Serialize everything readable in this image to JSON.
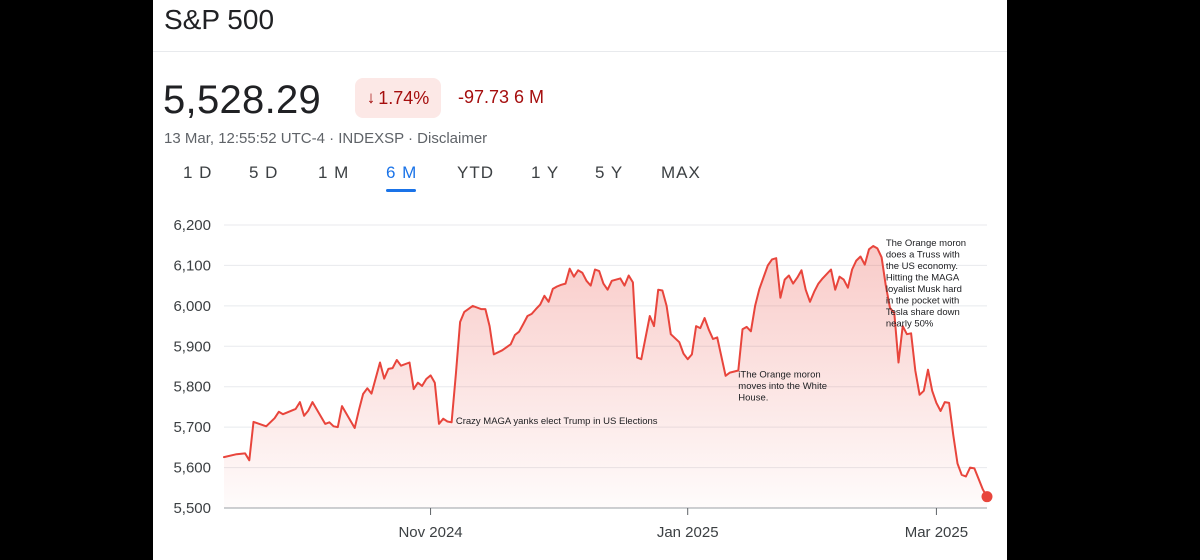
{
  "colors": {
    "line": "#e8453c",
    "negative_text": "#a50e0e",
    "negative_chip_bg": "#fce8e6",
    "active_tab": "#1a73e8",
    "grid": "#e8eaed"
  },
  "header": {
    "title": "S&P 500",
    "price": "5,528.29",
    "change_pct": "1.74%",
    "change_icon": "arrow-down-icon",
    "change_abs": "-97.73 6 M",
    "meta": "13 Mar, 12:55:52 UTC-4 · INDEXSP · Disclaimer"
  },
  "tabs": [
    {
      "label": "1 D",
      "active": false
    },
    {
      "label": "5 D",
      "active": false
    },
    {
      "label": "1 M",
      "active": false
    },
    {
      "label": "6 M",
      "active": true
    },
    {
      "label": "YTD",
      "active": false
    },
    {
      "label": "1 Y",
      "active": false
    },
    {
      "label": "5 Y",
      "active": false
    },
    {
      "label": "MAX",
      "active": false
    }
  ],
  "chart_data": {
    "type": "area",
    "grid": "horizontal",
    "ylim": [
      5500,
      6200
    ],
    "yticks": [
      5500,
      5600,
      5700,
      5800,
      5900,
      6000,
      6100,
      6200
    ],
    "ytick_labels": [
      "5,500",
      "5,600",
      "5,700",
      "5,800",
      "5,900",
      "6,000",
      "6,100",
      "6,200"
    ],
    "x_range": [
      "2024-09-13",
      "2025-03-13"
    ],
    "xticks": [
      {
        "date": "2024-11-01",
        "label": "Nov 2024"
      },
      {
        "date": "2025-01-01",
        "label": "Jan 2025"
      },
      {
        "date": "2025-03-01",
        "label": "Mar 2025"
      }
    ],
    "series": [
      {
        "points": [
          [
            "2024-09-13",
            5626
          ],
          [
            "2024-09-16",
            5633
          ],
          [
            "2024-09-18",
            5635
          ],
          [
            "2024-09-19",
            5618
          ],
          [
            "2024-09-20",
            5713
          ],
          [
            "2024-09-23",
            5702
          ],
          [
            "2024-09-25",
            5722
          ],
          [
            "2024-09-26",
            5738
          ],
          [
            "2024-09-27",
            5732
          ],
          [
            "2024-09-30",
            5745
          ],
          [
            "2024-10-01",
            5762
          ],
          [
            "2024-10-02",
            5728
          ],
          [
            "2024-10-03",
            5741
          ],
          [
            "2024-10-04",
            5762
          ],
          [
            "2024-10-07",
            5708
          ],
          [
            "2024-10-08",
            5712
          ],
          [
            "2024-10-09",
            5702
          ],
          [
            "2024-10-10",
            5700
          ],
          [
            "2024-10-11",
            5752
          ],
          [
            "2024-10-14",
            5698
          ],
          [
            "2024-10-15",
            5742
          ],
          [
            "2024-10-16",
            5782
          ],
          [
            "2024-10-17",
            5796
          ],
          [
            "2024-10-18",
            5783
          ],
          [
            "2024-10-20",
            5860
          ],
          [
            "2024-10-21",
            5820
          ],
          [
            "2024-10-22",
            5844
          ],
          [
            "2024-10-23",
            5846
          ],
          [
            "2024-10-24",
            5866
          ],
          [
            "2024-10-25",
            5852
          ],
          [
            "2024-10-27",
            5860
          ],
          [
            "2024-10-28",
            5794
          ],
          [
            "2024-10-29",
            5810
          ],
          [
            "2024-10-30",
            5802
          ],
          [
            "2024-10-31",
            5819
          ],
          [
            "2024-11-01",
            5828
          ],
          [
            "2024-11-02",
            5810
          ],
          [
            "2024-11-03",
            5708
          ],
          [
            "2024-11-04",
            5721
          ],
          [
            "2024-11-05",
            5714
          ],
          [
            "2024-11-06",
            5712
          ],
          [
            "2024-11-07",
            5832
          ],
          [
            "2024-11-08",
            5960
          ],
          [
            "2024-11-09",
            5985
          ],
          [
            "2024-11-11",
            6000
          ],
          [
            "2024-11-12",
            5996
          ],
          [
            "2024-11-13",
            5992
          ],
          [
            "2024-11-14",
            5992
          ],
          [
            "2024-11-15",
            5950
          ],
          [
            "2024-11-16",
            5880
          ],
          [
            "2024-11-18",
            5890
          ],
          [
            "2024-11-20",
            5905
          ],
          [
            "2024-11-21",
            5928
          ],
          [
            "2024-11-22",
            5936
          ],
          [
            "2024-11-23",
            5955
          ],
          [
            "2024-11-24",
            5975
          ],
          [
            "2024-11-25",
            5980
          ],
          [
            "2024-11-26",
            5992
          ],
          [
            "2024-11-27",
            6003
          ],
          [
            "2024-11-28",
            6025
          ],
          [
            "2024-11-29",
            6010
          ],
          [
            "2024-11-30",
            6042
          ],
          [
            "2024-12-01",
            6048
          ],
          [
            "2024-12-02",
            6052
          ],
          [
            "2024-12-03",
            6055
          ],
          [
            "2024-12-04",
            6092
          ],
          [
            "2024-12-05",
            6072
          ],
          [
            "2024-12-06",
            6088
          ],
          [
            "2024-12-07",
            6082
          ],
          [
            "2024-12-08",
            6062
          ],
          [
            "2024-12-09",
            6050
          ],
          [
            "2024-12-10",
            6090
          ],
          [
            "2024-12-11",
            6086
          ],
          [
            "2024-12-12",
            6055
          ],
          [
            "2024-12-13",
            6040
          ],
          [
            "2024-12-14",
            6062
          ],
          [
            "2024-12-16",
            6068
          ],
          [
            "2024-12-17",
            6050
          ],
          [
            "2024-12-18",
            6075
          ],
          [
            "2024-12-19",
            6058
          ],
          [
            "2024-12-20",
            5872
          ],
          [
            "2024-12-21",
            5868
          ],
          [
            "2024-12-23",
            5975
          ],
          [
            "2024-12-24",
            5950
          ],
          [
            "2024-12-25",
            6040
          ],
          [
            "2024-12-26",
            6038
          ],
          [
            "2024-12-27",
            6000
          ],
          [
            "2024-12-28",
            5930
          ],
          [
            "2024-12-30",
            5910
          ],
          [
            "2024-12-31",
            5882
          ],
          [
            "2025-01-01",
            5868
          ],
          [
            "2025-01-02",
            5880
          ],
          [
            "2025-01-03",
            5950
          ],
          [
            "2025-01-04",
            5945
          ],
          [
            "2025-01-05",
            5970
          ],
          [
            "2025-01-06",
            5941
          ],
          [
            "2025-01-07",
            5918
          ],
          [
            "2025-01-08",
            5922
          ],
          [
            "2025-01-10",
            5827
          ],
          [
            "2025-01-11",
            5835
          ],
          [
            "2025-01-13",
            5840
          ],
          [
            "2025-01-14",
            5942
          ],
          [
            "2025-01-15",
            5948
          ],
          [
            "2025-01-16",
            5937
          ],
          [
            "2025-01-17",
            6000
          ],
          [
            "2025-01-18",
            6042
          ],
          [
            "2025-01-20",
            6100
          ],
          [
            "2025-01-21",
            6115
          ],
          [
            "2025-01-22",
            6118
          ],
          [
            "2025-01-23",
            6020
          ],
          [
            "2025-01-24",
            6065
          ],
          [
            "2025-01-25",
            6075
          ],
          [
            "2025-01-26",
            6055
          ],
          [
            "2025-01-27",
            6070
          ],
          [
            "2025-01-28",
            6088
          ],
          [
            "2025-01-29",
            6040
          ],
          [
            "2025-01-30",
            6010
          ],
          [
            "2025-01-31",
            6035
          ],
          [
            "2025-02-01",
            6055
          ],
          [
            "2025-02-02",
            6068
          ],
          [
            "2025-02-04",
            6090
          ],
          [
            "2025-02-05",
            6040
          ],
          [
            "2025-02-06",
            6072
          ],
          [
            "2025-02-07",
            6065
          ],
          [
            "2025-02-08",
            6045
          ],
          [
            "2025-02-09",
            6090
          ],
          [
            "2025-02-10",
            6112
          ],
          [
            "2025-02-11",
            6122
          ],
          [
            "2025-02-12",
            6102
          ],
          [
            "2025-02-13",
            6140
          ],
          [
            "2025-02-14",
            6148
          ],
          [
            "2025-02-15",
            6142
          ],
          [
            "2025-02-16",
            6120
          ],
          [
            "2025-02-17",
            6050
          ],
          [
            "2025-02-18",
            5995
          ],
          [
            "2025-02-19",
            5982
          ],
          [
            "2025-02-20",
            5860
          ],
          [
            "2025-02-21",
            5950
          ],
          [
            "2025-02-22",
            5930
          ],
          [
            "2025-02-23",
            5932
          ],
          [
            "2025-02-24",
            5840
          ],
          [
            "2025-02-25",
            5780
          ],
          [
            "2025-02-26",
            5790
          ],
          [
            "2025-02-27",
            5842
          ],
          [
            "2025-02-28",
            5790
          ],
          [
            "2025-03-01",
            5760
          ],
          [
            "2025-03-02",
            5740
          ],
          [
            "2025-03-03",
            5762
          ],
          [
            "2025-03-04",
            5760
          ],
          [
            "2025-03-05",
            5680
          ],
          [
            "2025-03-06",
            5610
          ],
          [
            "2025-03-07",
            5582
          ],
          [
            "2025-03-08",
            5578
          ],
          [
            "2025-03-09",
            5600
          ],
          [
            "2025-03-10",
            5598
          ],
          [
            "2025-03-11",
            5572
          ],
          [
            "2025-03-12",
            5546
          ],
          [
            "2025-03-13",
            5528
          ]
        ]
      }
    ],
    "last_point": {
      "date": "2025-03-13",
      "value": 5528
    },
    "annotations": [
      {
        "date": "2024-11-07",
        "value": 5708,
        "lines": [
          "Crazy MAGA yanks elect Trump in US Elections"
        ]
      },
      {
        "date": "2025-01-13",
        "value": 5823,
        "lines": [
          "iThe Orange moron",
          "moves into the White",
          "House."
        ]
      },
      {
        "date": "2025-02-17",
        "value": 6148,
        "lines": [
          "The Orange moron",
          "does a Truss with",
          "the US economy.",
          "Hitting the MAGA",
          "loyalist Musk hard",
          "in the pocket with",
          "Tesla share down",
          "nearly 50%"
        ]
      }
    ]
  }
}
